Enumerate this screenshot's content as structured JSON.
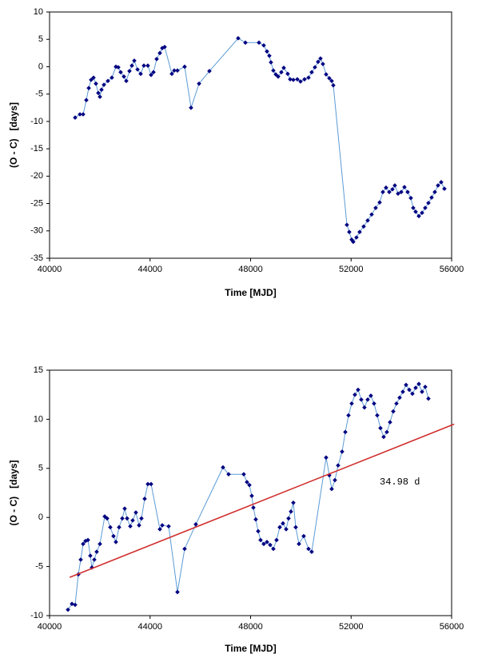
{
  "chart_data": [
    {
      "type": "line",
      "marker_color": "#000080",
      "line_color": "#5b9bd5",
      "x_label": "Time [MJD]",
      "y_label": "(O - C)   [days]",
      "xlim": [
        40000,
        56000
      ],
      "xticks": [
        40000,
        44000,
        48000,
        52000,
        56000
      ],
      "ylim": [
        -35,
        10
      ],
      "yticks": [
        10,
        5,
        0,
        -5,
        -10,
        -15,
        -20,
        -25,
        -30,
        -35
      ],
      "x": [
        41018,
        41209,
        41336,
        41463,
        41560,
        41654,
        41750,
        41845,
        41940,
        42004,
        42067,
        42163,
        42322,
        42480,
        42640,
        42735,
        42830,
        42958,
        43053,
        43180,
        43276,
        43371,
        43500,
        43626,
        43753,
        43912,
        44040,
        44135,
        44262,
        44390,
        44485,
        44580,
        44866,
        44962,
        45089,
        45375,
        45630,
        45948,
        46361,
        47506,
        47793,
        48333,
        48524,
        48651,
        48746,
        48810,
        48906,
        49001,
        49097,
        49224,
        49320,
        49478,
        49574,
        49701,
        49860,
        49987,
        50146,
        50305,
        50432,
        50560,
        50687,
        50782,
        50878,
        51005,
        51132,
        51228,
        51291,
        51832,
        51927,
        52022,
        52086,
        52213,
        52340,
        52500,
        52659,
        52818,
        52977,
        53136,
        53263,
        53390,
        53518,
        53645,
        53740,
        53868,
        53995,
        54122,
        54250,
        54377,
        54472,
        54568,
        54695,
        54822,
        54949,
        55076,
        55204,
        55331,
        55458,
        55585,
        55712
      ],
      "values": [
        -9.3,
        -8.7,
        -8.7,
        -6.1,
        -3.9,
        -2.4,
        -2,
        -3.1,
        -4.8,
        -5.5,
        -4.2,
        -3.3,
        -2.6,
        -2,
        0,
        -0.1,
        -1,
        -1.8,
        -2.6,
        -0.8,
        0.2,
        1.1,
        -0.5,
        -1.3,
        0.2,
        0.2,
        -1.5,
        -1,
        1.4,
        2.5,
        3.4,
        3.6,
        -1.3,
        -0.7,
        -0.7,
        0,
        -7.5,
        -3.1,
        -0.8,
        5.2,
        4.4,
        4.4,
        3.9,
        2.8,
        2,
        0.8,
        -0.7,
        -1.4,
        -1.8,
        -1,
        -0.2,
        -1.3,
        -2.3,
        -2.4,
        -2.3,
        -2.7,
        -2.3,
        -2,
        -1,
        -0.1,
        0.9,
        1.5,
        0.5,
        -1.4,
        -2.1,
        -2.6,
        -3.4,
        -28.9,
        -30.2,
        -31.6,
        -32,
        -31.2,
        -30.2,
        -29.2,
        -28.1,
        -27,
        -25.8,
        -24.8,
        -22.9,
        -22.1,
        -22.9,
        -22.4,
        -21.7,
        -23.2,
        -22.9,
        -22,
        -22.9,
        -24,
        -25.8,
        -26.5,
        -27.3,
        -26.7,
        -25.8,
        -24.9,
        -23.9,
        -22.9,
        -21.7,
        -21.1,
        -22.3
      ]
    },
    {
      "type": "line",
      "marker_color": "#000080",
      "line_color": "#5b9bd5",
      "x_label": "Time [MJD]",
      "y_label": "(O - C)   [days]",
      "xlim": [
        40000,
        56000
      ],
      "xticks": [
        40000,
        44000,
        48000,
        52000,
        56000
      ],
      "ylim": [
        -10,
        15
      ],
      "yticks": [
        15,
        10,
        5,
        0,
        -5,
        -10
      ],
      "annotation": "34.98 d",
      "trend": {
        "x": [
          40800,
          56100
        ],
        "values": [
          -6.1,
          9.5
        ],
        "color": "#d03030"
      },
      "x": [
        40732,
        40891,
        41018,
        41145,
        41240,
        41336,
        41431,
        41527,
        41622,
        41686,
        41781,
        41876,
        42004,
        42195,
        42290,
        42417,
        42544,
        42640,
        42767,
        42894,
        42990,
        43085,
        43212,
        43308,
        43435,
        43562,
        43657,
        43785,
        43912,
        44040,
        44390,
        44485,
        44739,
        45089,
        45375,
        45820,
        46902,
        47125,
        47729,
        47856,
        47952,
        48047,
        48111,
        48206,
        48302,
        48397,
        48524,
        48651,
        48779,
        48906,
        49033,
        49160,
        49288,
        49415,
        49510,
        49606,
        49701,
        49796,
        49924,
        50114,
        50305,
        50432,
        51005,
        51132,
        51228,
        51355,
        51482,
        51641,
        51769,
        51896,
        52023,
        52150,
        52277,
        52404,
        52531,
        52659,
        52786,
        52913,
        53040,
        53168,
        53295,
        53422,
        53549,
        53677,
        53804,
        53931,
        54058,
        54186,
        54313,
        54440,
        54568,
        54695,
        54822,
        54949,
        55076
      ],
      "values": [
        -9.4,
        -8.8,
        -8.9,
        -5.8,
        -4.3,
        -2.7,
        -2.4,
        -2.3,
        -3.9,
        -5.1,
        -4.3,
        -3.5,
        -2.7,
        0.1,
        -0.1,
        -1,
        -1.9,
        -2.5,
        -1,
        -0.1,
        0.9,
        -0.1,
        -0.9,
        -0.3,
        0.5,
        -0.8,
        -0.1,
        1.9,
        3.4,
        3.4,
        -1.2,
        -0.8,
        -0.9,
        -7.6,
        -3.2,
        -0.7,
        5.1,
        4.4,
        4.4,
        3.6,
        3.3,
        2.2,
        1,
        -0.2,
        -1.4,
        -2.3,
        -2.7,
        -2.5,
        -2.8,
        -3.2,
        -2.3,
        -1,
        -0.6,
        -1.2,
        -0.1,
        0.6,
        1.5,
        -1,
        -2.7,
        -1.9,
        -3.2,
        -3.5,
        6.1,
        4.3,
        2.9,
        3.8,
        5.3,
        6.7,
        8.7,
        10.4,
        11.6,
        12.5,
        13,
        12,
        11.2,
        12,
        12.4,
        11.6,
        10.4,
        9.1,
        8.2,
        8.7,
        9.7,
        10.8,
        11.6,
        12.2,
        12.8,
        13.5,
        13,
        12.6,
        13.2,
        13.6,
        12.8,
        13.3,
        12.1
      ]
    }
  ]
}
